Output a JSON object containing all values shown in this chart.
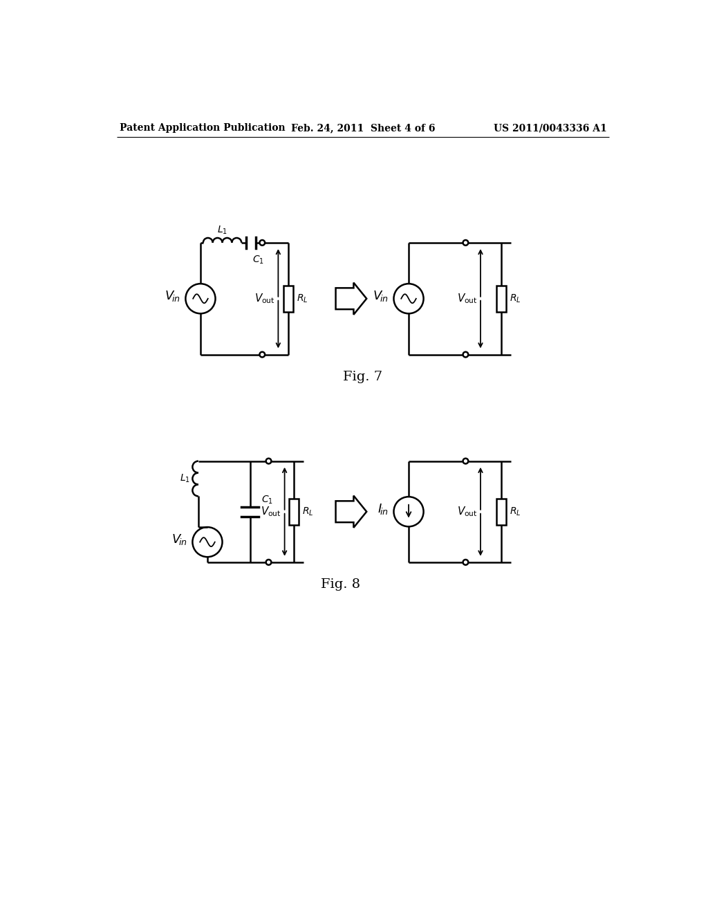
{
  "bg_color": "#ffffff",
  "line_color": "#000000",
  "header_left": "Patent Application Publication",
  "header_mid": "Feb. 24, 2011  Sheet 4 of 6",
  "header_right": "US 2011/0043336 A1",
  "fig7_label": "Fig. 7",
  "fig8_label": "Fig. 8"
}
